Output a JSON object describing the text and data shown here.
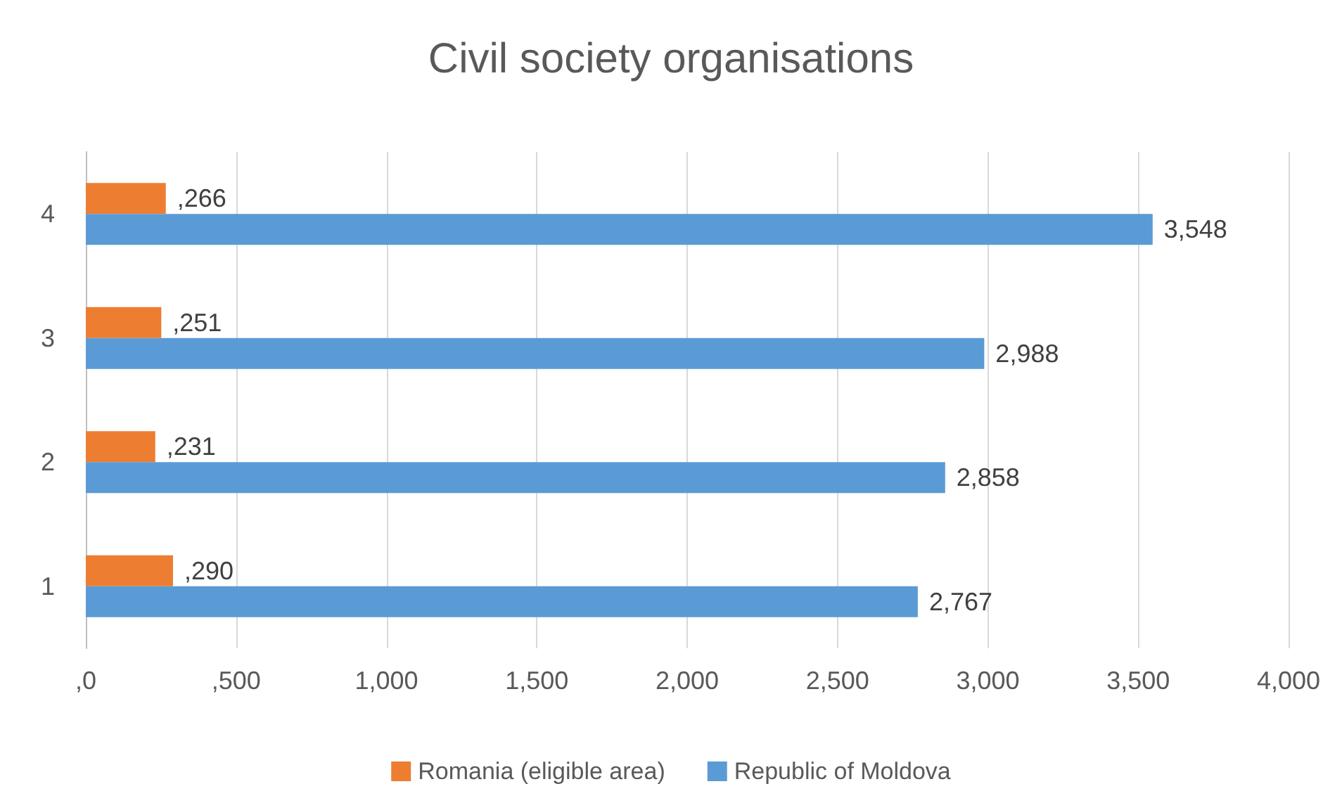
{
  "chart_data": {
    "type": "bar",
    "title": "Civil society organisations",
    "orientation": "horizontal",
    "categories": [
      "4",
      "3",
      "2",
      "1"
    ],
    "series": [
      {
        "name": "Romania (eligible area)",
        "color": "#ed7d31",
        "values": [
          266,
          251,
          231,
          290
        ],
        "value_labels": [
          ",266",
          ",251",
          ",231",
          ",290"
        ]
      },
      {
        "name": "Republic of Moldova",
        "color": "#5b9bd5",
        "values": [
          3548,
          2988,
          2858,
          2767
        ],
        "value_labels": [
          "3,548",
          "2,988",
          "2,858",
          "2,767"
        ]
      }
    ],
    "xlim": [
      0,
      4000
    ],
    "xticks": [
      {
        "value": 0,
        "label": ",0"
      },
      {
        "value": 500,
        "label": ",500"
      },
      {
        "value": 1000,
        "label": "1,000"
      },
      {
        "value": 1500,
        "label": "1,500"
      },
      {
        "value": 2000,
        "label": "2,000"
      },
      {
        "value": 2500,
        "label": "2,500"
      },
      {
        "value": 3000,
        "label": "3,000"
      },
      {
        "value": 3500,
        "label": "3,500"
      },
      {
        "value": 4000,
        "label": "4,000"
      }
    ],
    "grid": "x",
    "legend": "bottom"
  }
}
